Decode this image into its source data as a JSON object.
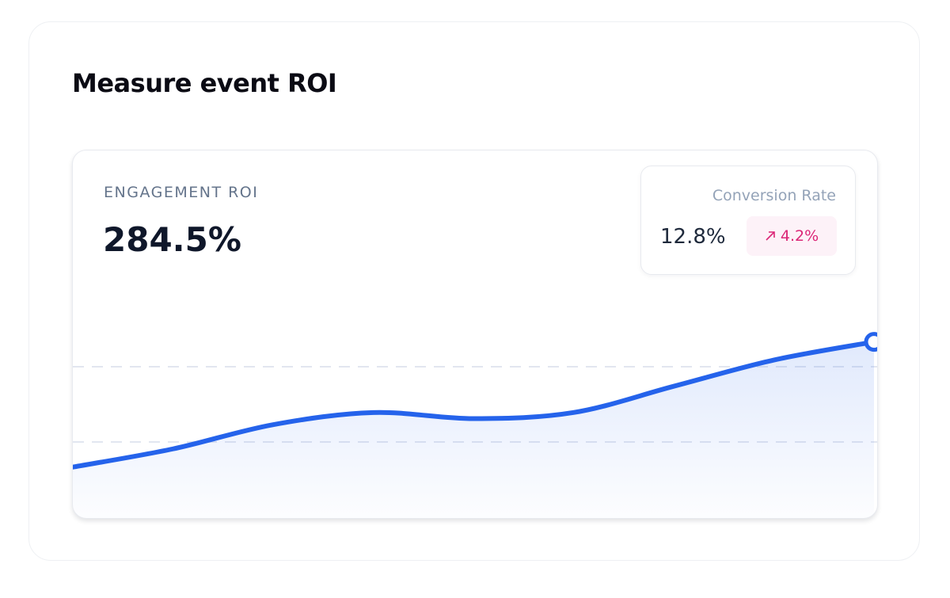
{
  "header": {
    "title": "Measure event ROI"
  },
  "metric": {
    "label": "ENGAGEMENT ROI",
    "value": "284.5%"
  },
  "conversion": {
    "label": "Conversion Rate",
    "value": "12.8%",
    "change": "4.2%"
  },
  "chart_data": {
    "type": "line",
    "values": [
      26,
      35,
      47,
      53,
      50,
      53,
      66,
      79,
      88
    ],
    "color": "#2563eb",
    "ylim": [
      0,
      100
    ]
  }
}
